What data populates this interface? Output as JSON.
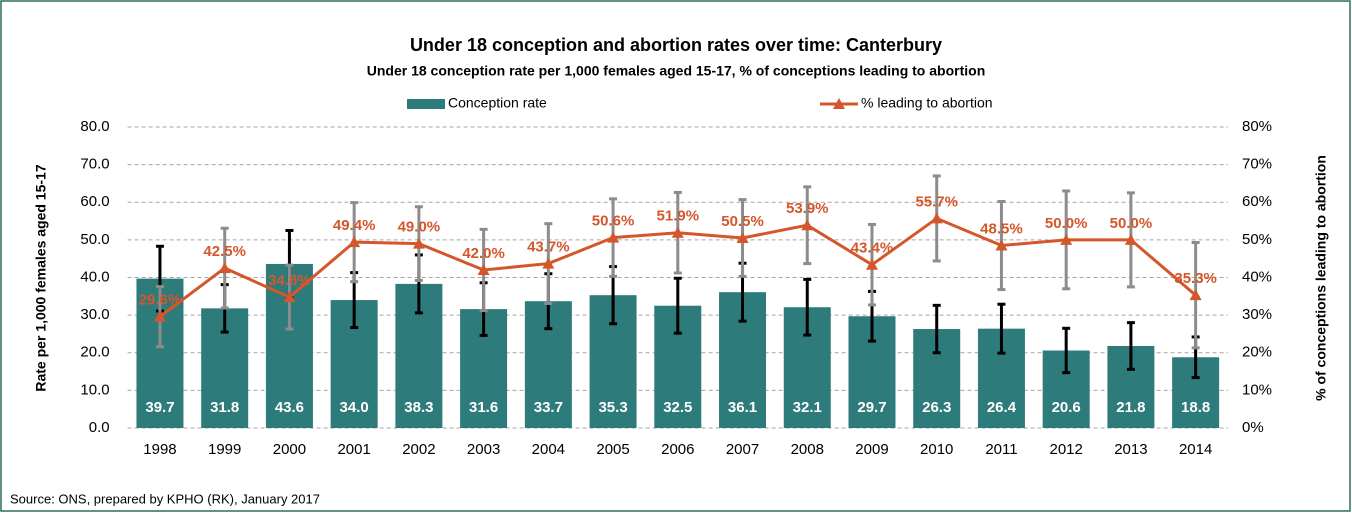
{
  "chart_data": {
    "type": "bar",
    "title": "Under 18 conception and abortion rates over time: Canterbury",
    "subtitle": "Under 18 conception rate per 1,000 females aged 15-17, % of conceptions leading to abortion",
    "y_label": "Rate per 1,000 females aged 15-17",
    "y2_label": "% of conceptions leading to abortion",
    "source": "Source: ONS, prepared by KPHO (RK), January 2017",
    "categories": [
      "1998",
      "1999",
      "2000",
      "2001",
      "2002",
      "2003",
      "2004",
      "2005",
      "2006",
      "2007",
      "2008",
      "2009",
      "2010",
      "2011",
      "2012",
      "2013",
      "2014"
    ],
    "series": [
      {
        "name": "Conception rate",
        "type": "bar",
        "color": "#2e7b7b",
        "values": [
          39.7,
          31.8,
          43.6,
          34.0,
          38.3,
          31.6,
          33.7,
          35.3,
          32.5,
          36.1,
          32.1,
          29.7,
          26.3,
          26.4,
          20.6,
          21.8,
          18.8
        ],
        "value_labels": [
          "39.7",
          "31.8",
          "43.6",
          "34.0",
          "38.3",
          "31.6",
          "33.7",
          "35.3",
          "32.5",
          "36.1",
          "32.1",
          "29.7",
          "26.3",
          "26.4",
          "20.6",
          "21.8",
          "18.8"
        ],
        "errors": [
          8.6,
          6.3,
          8.9,
          7.3,
          7.7,
          7.0,
          7.3,
          7.6,
          7.3,
          7.7,
          7.4,
          6.6,
          6.3,
          6.5,
          5.9,
          6.2,
          5.4
        ],
        "error_color": "#000000"
      },
      {
        "name": "% leading to abortion",
        "type": "line",
        "axis": "y2",
        "color": "#d4572b",
        "values": [
          29.6,
          42.5,
          34.8,
          49.4,
          49.0,
          42.0,
          43.7,
          50.6,
          51.9,
          50.5,
          53.9,
          43.4,
          55.7,
          48.5,
          50.0,
          50.0,
          35.3
        ],
        "value_labels": [
          "29.6%",
          "42.5%",
          "34.8%",
          "49.4%",
          "49.0%",
          "42.0%",
          "43.7%",
          "50.6%",
          "51.9%",
          "50.5%",
          "53.9%",
          "43.4%",
          "55.7%",
          "48.5%",
          "50.0%",
          "50.0%",
          "35.3%"
        ],
        "errors": [
          8.0,
          10.6,
          8.5,
          10.5,
          9.8,
          10.8,
          10.6,
          10.3,
          10.7,
          10.2,
          10.2,
          10.7,
          11.3,
          11.7,
          13.0,
          12.5,
          14.0
        ],
        "error_color": "#8c8c8c"
      }
    ],
    "ylim": [
      0,
      80
    ],
    "yticks": [
      {
        "value": 0,
        "label": "0.0"
      },
      {
        "value": 10,
        "label": "10.0"
      },
      {
        "value": 20,
        "label": "20.0"
      },
      {
        "value": 30,
        "label": "30.0"
      },
      {
        "value": 40,
        "label": "40.0"
      },
      {
        "value": 50,
        "label": "50.0"
      },
      {
        "value": 60,
        "label": "60.0"
      },
      {
        "value": 70,
        "label": "70.0"
      },
      {
        "value": 80,
        "label": "80.0"
      }
    ],
    "y2lim": [
      0,
      80
    ],
    "y2ticks": [
      {
        "value": 0,
        "label": "0%"
      },
      {
        "value": 10,
        "label": "10%"
      },
      {
        "value": 20,
        "label": "20%"
      },
      {
        "value": 30,
        "label": "30%"
      },
      {
        "value": 40,
        "label": "40%"
      },
      {
        "value": 50,
        "label": "50%"
      },
      {
        "value": 60,
        "label": "60%"
      },
      {
        "value": 70,
        "label": "70%"
      },
      {
        "value": 80,
        "label": "80%"
      }
    ],
    "grid": true,
    "legend": "top"
  }
}
